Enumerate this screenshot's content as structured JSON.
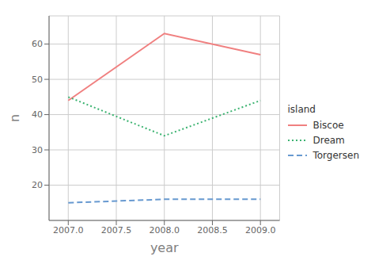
{
  "chart_data": {
    "type": "line",
    "x": [
      2007,
      2008,
      2009
    ],
    "series": [
      {
        "name": "Biscoe",
        "color": "#F08080",
        "values": [
          44,
          63,
          57
        ],
        "line_style": "solid"
      },
      {
        "name": "Dream",
        "color": "#3CB371",
        "values": [
          45,
          34,
          44
        ],
        "line_style": "dotted"
      },
      {
        "name": "Torgersen",
        "color": "#6799D0",
        "values": [
          15,
          16,
          16
        ],
        "line_style": "dashed"
      }
    ],
    "xlabel": "year",
    "ylabel": "n",
    "xlim": [
      2006.8,
      2009.2
    ],
    "xticks": [
      {
        "value": 2007,
        "label": "2007.0"
      },
      {
        "value": 2007.5,
        "label": "2007.5"
      },
      {
        "value": 2008,
        "label": "2008.0"
      },
      {
        "value": 2008.5,
        "label": "2008.5"
      },
      {
        "value": 2009,
        "label": "2009.0"
      }
    ],
    "ylim": [
      10,
      68
    ],
    "yticks": [
      20,
      30,
      40,
      50,
      60
    ],
    "grid": true,
    "legend": "right",
    "legend_title": "island"
  }
}
